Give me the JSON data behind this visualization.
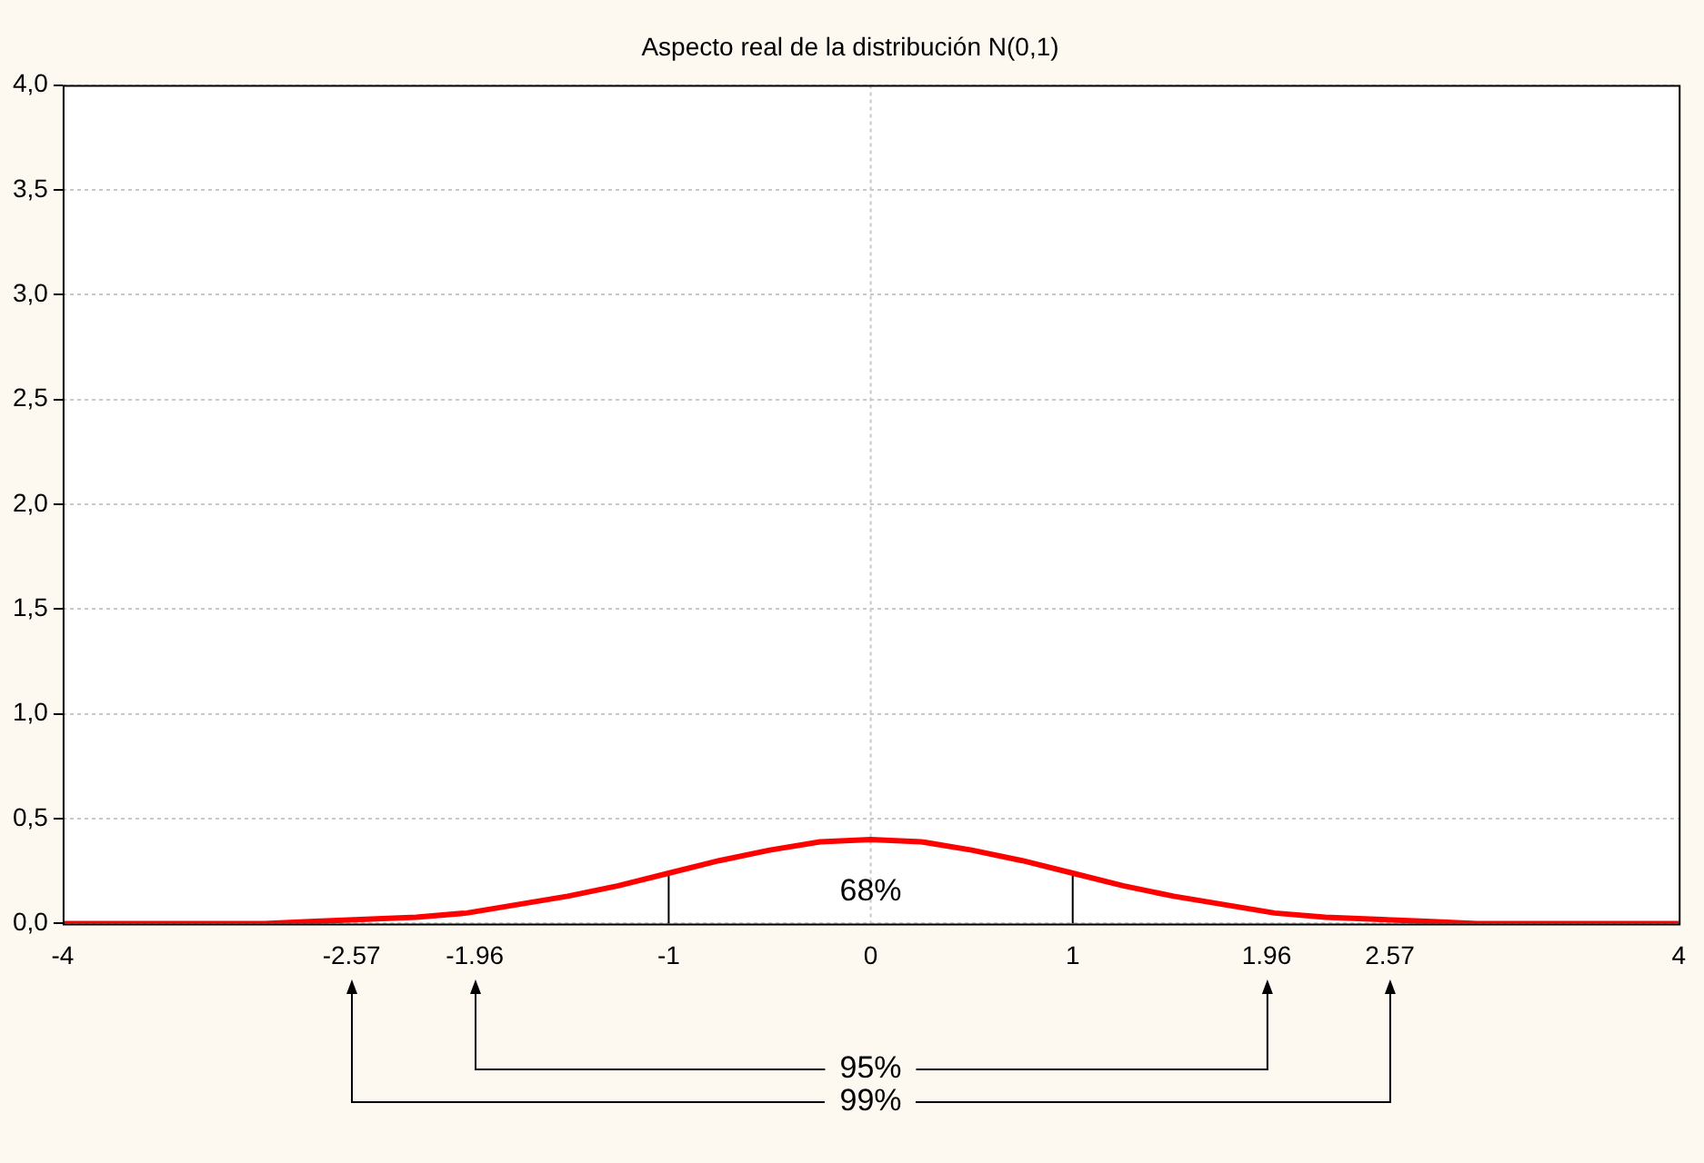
{
  "chart_data": {
    "type": "line",
    "title": "Aspecto real de la distribución N(0,1)",
    "xlim": [
      -4,
      4
    ],
    "ylim": [
      0,
      4
    ],
    "xticks": [
      -4,
      -2.57,
      -1.96,
      -1,
      0,
      1,
      1.96,
      2.57,
      4
    ],
    "yticks": [
      {
        "value": 0,
        "label": "0,0"
      },
      {
        "value": 0.5,
        "label": "0,5"
      },
      {
        "value": 1,
        "label": "1,0"
      },
      {
        "value": 1.5,
        "label": "1,5"
      },
      {
        "value": 2,
        "label": "2,0"
      },
      {
        "value": 2.5,
        "label": "2,5"
      },
      {
        "value": 3,
        "label": "3,0"
      },
      {
        "value": 3.5,
        "label": "3,5"
      },
      {
        "value": 4,
        "label": "4,0"
      }
    ],
    "grid": "y",
    "legend": false,
    "marker": "none",
    "line_style": "solid",
    "series": [
      {
        "color": "#ff0000",
        "x": [
          -4,
          -3.5,
          -3,
          -2.75,
          -2.5,
          -2.25,
          -2,
          -1.75,
          -1.5,
          -1.25,
          -1,
          -0.75,
          -0.5,
          -0.25,
          0,
          0.25,
          0.5,
          0.75,
          1,
          1.25,
          1.5,
          1.75,
          2,
          2.25,
          2.5,
          2.75,
          3,
          3.5,
          4
        ],
        "values": [
          0,
          0,
          0,
          0.01,
          0.02,
          0.03,
          0.05,
          0.09,
          0.13,
          0.18,
          0.24,
          0.3,
          0.35,
          0.39,
          0.4,
          0.39,
          0.35,
          0.3,
          0.24,
          0.18,
          0.13,
          0.09,
          0.05,
          0.03,
          0.02,
          0.01,
          0,
          0,
          0
        ]
      },
      {
        "color": "#000000",
        "x": [
          -1,
          -1
        ],
        "values": [
          0,
          0.24
        ]
      },
      {
        "color": "#000000",
        "x": [
          1,
          1
        ],
        "values": [
          0,
          0.24
        ]
      }
    ],
    "ref_lines": [
      {
        "axis": "x",
        "value": 0,
        "color": "#c8c8c8",
        "line_style": "dotted"
      }
    ],
    "annotations": [
      {
        "text": "68%",
        "x": 0,
        "y": 0.15
      },
      "95%",
      "99%"
    ]
  }
}
